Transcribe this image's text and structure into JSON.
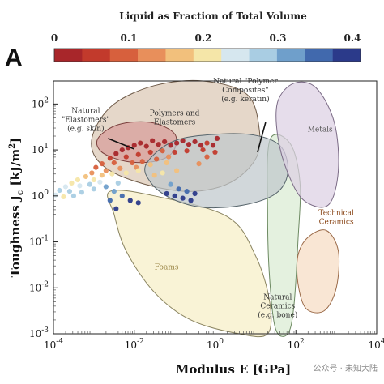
{
  "panel_label": "A",
  "colorbar": {
    "title": "Liquid as Fraction of Total Volume",
    "ticks": [
      "0",
      "0.1",
      "0.2",
      "0.3",
      "0.4"
    ],
    "colors": [
      "#a8262a",
      "#c23a2c",
      "#d7603d",
      "#e88f5b",
      "#f2c07c",
      "#f5e6a8",
      "#d6e7ef",
      "#a9cde3",
      "#6f9fcb",
      "#4169ad",
      "#2b3a8a"
    ]
  },
  "watermark": "公众号 · 未知大陆",
  "chart_data": {
    "type": "scatter",
    "title": "",
    "xlabel": "Modulus E [GPa]",
    "ylabel": "Toughness J",
    "ylabel_sub": "c",
    "ylabel_unit": " [kJ/m",
    "ylabel_sup": "2",
    "ylabel_end": "]",
    "xscale": "log",
    "yscale": "log",
    "xlim_exp": [
      -4,
      4
    ],
    "ylim_exp": [
      -3,
      2.5
    ],
    "xticks": [
      {
        "base": "10",
        "exp": "-4",
        "v": -4
      },
      {
        "base": "10",
        "exp": "-2",
        "v": -2
      },
      {
        "base": "10",
        "exp": "0",
        "v": 0
      },
      {
        "base": "10",
        "exp": "2",
        "v": 2
      },
      {
        "base": "10",
        "exp": "4",
        "v": 4
      }
    ],
    "yticks": [
      {
        "base": "10",
        "exp": "2",
        "v": 2
      },
      {
        "base": "10",
        "exp": "1",
        "v": 1
      },
      {
        "base": "10",
        "exp": "0",
        "v": 0
      },
      {
        "base": "10",
        "exp": "-1",
        "v": -1
      },
      {
        "base": "10",
        "exp": "-2",
        "v": -2
      },
      {
        "base": "10",
        "exp": "-3",
        "v": -3
      }
    ],
    "regions": [
      {
        "name": "foams",
        "label": [
          "Foams"
        ],
        "fill": "#f6efc6",
        "stroke": "#8a8460",
        "label_color": "#9a8546",
        "label_at": [
          -1.2,
          -1.6
        ],
        "poly": [
          [
            -2.6,
            0.1
          ],
          [
            -1.5,
            0.0
          ],
          [
            0.3,
            -0.45
          ],
          [
            1.0,
            -1.3
          ],
          [
            1.35,
            -2.3
          ],
          [
            1.3,
            -3.0
          ],
          [
            0.6,
            -3.0
          ],
          [
            -0.6,
            -2.7
          ],
          [
            -1.5,
            -2.1
          ],
          [
            -2.2,
            -1.2
          ],
          [
            -2.5,
            -0.4
          ]
        ]
      },
      {
        "name": "natural-ceramics",
        "label": [
          "Natural",
          "Ceramics",
          "(e.g. bone)"
        ],
        "fill": "#d9ecd3",
        "stroke": "#6d8a62",
        "label_color": "#333",
        "label_at": [
          1.55,
          -2.25
        ],
        "poly": [
          [
            1.35,
            1.2
          ],
          [
            1.85,
            1.15
          ],
          [
            2.1,
            0.3
          ],
          [
            2.05,
            -1.0
          ],
          [
            1.95,
            -2.4
          ],
          [
            1.8,
            -3.0
          ],
          [
            1.5,
            -2.9
          ],
          [
            1.35,
            -1.8
          ],
          [
            1.3,
            -0.4
          ]
        ]
      },
      {
        "name": "polymers-elastomers",
        "label": [
          "Polymers and",
          "Elastomers"
        ],
        "fill": "#dbc7b4",
        "stroke": "#6e5a48",
        "label_color": "#333",
        "label_at": [
          -1.0,
          1.75
        ],
        "poly": [
          [
            -3.0,
            1.4
          ],
          [
            -2.5,
            2.0
          ],
          [
            -1.5,
            2.4
          ],
          [
            -0.3,
            2.5
          ],
          [
            0.8,
            2.2
          ],
          [
            1.1,
            1.4
          ],
          [
            1.0,
            0.8
          ],
          [
            0.4,
            0.3
          ],
          [
            -0.5,
            0.1
          ],
          [
            -1.5,
            0.2
          ],
          [
            -2.5,
            0.5
          ],
          [
            -3.0,
            0.9
          ]
        ]
      },
      {
        "name": "natural-elastomers",
        "label": [
          "Natural",
          "\"Elastomers\"",
          "(e.g. skin)"
        ],
        "fill": "#d79d9a",
        "stroke": "#7a3f3c",
        "label_color": "#333",
        "label_at": [
          -3.2,
          1.8
        ],
        "poly": [
          [
            -2.9,
            1.25
          ],
          [
            -2.4,
            1.55
          ],
          [
            -1.6,
            1.6
          ],
          [
            -1.0,
            1.35
          ],
          [
            -1.05,
            0.95
          ],
          [
            -1.5,
            0.75
          ],
          [
            -2.2,
            0.75
          ],
          [
            -2.8,
            0.95
          ]
        ]
      },
      {
        "name": "natural-polymer-composites",
        "label": [
          "Natural \"Polymer",
          "Composites\"",
          "(e.g. keratin)"
        ],
        "fill": "#bfc8cc",
        "stroke": "#55636a",
        "label_color": "#333",
        "label_at": [
          0.75,
          2.45
        ],
        "poly": [
          [
            -1.7,
            0.7
          ],
          [
            -1.0,
            1.2
          ],
          [
            0.2,
            1.35
          ],
          [
            1.1,
            1.3
          ],
          [
            1.65,
            1.05
          ],
          [
            1.8,
            0.5
          ],
          [
            1.5,
            0.05
          ],
          [
            0.7,
            -0.2
          ],
          [
            -0.3,
            -0.25
          ],
          [
            -1.1,
            -0.05
          ],
          [
            -1.6,
            0.3
          ]
        ]
      },
      {
        "name": "metals",
        "label": [
          "Metals"
        ],
        "fill": "#ddd0e3",
        "stroke": "#7a6a85",
        "label_color": "#555",
        "label_at": [
          2.6,
          1.4
        ],
        "poly": [
          [
            1.55,
            2.05
          ],
          [
            1.95,
            2.45
          ],
          [
            2.5,
            2.35
          ],
          [
            2.95,
            1.6
          ],
          [
            3.05,
            0.55
          ],
          [
            2.8,
            -0.2
          ],
          [
            2.2,
            -0.1
          ],
          [
            1.8,
            0.5
          ],
          [
            1.55,
            1.3
          ]
        ]
      },
      {
        "name": "technical-ceramics",
        "label": [
          "Technical",
          "Ceramics"
        ],
        "fill": "#f7dcc4",
        "stroke": "#9a6a48",
        "label_color": "#8c4a1c",
        "label_at": [
          3.0,
          -0.42
        ],
        "poly": [
          [
            2.05,
            -1.3
          ],
          [
            2.3,
            -0.9
          ],
          [
            2.75,
            -0.75
          ],
          [
            3.05,
            -1.2
          ],
          [
            3.0,
            -2.0
          ],
          [
            2.7,
            -2.5
          ],
          [
            2.25,
            -2.45
          ],
          [
            2.05,
            -1.9
          ]
        ]
      }
    ],
    "leaders": [
      {
        "name": "elastomers-leader",
        "from": [
          -2.65,
          1.25
        ],
        "to": [
          -2.0,
          1.02
        ]
      },
      {
        "name": "keratin-leader",
        "from": [
          1.25,
          1.6
        ],
        "to": [
          1.05,
          0.95
        ]
      }
    ],
    "points": [
      {
        "x": -3.55,
        "y": 0.28,
        "f": 0.22
      },
      {
        "x": -3.4,
        "y": 0.35,
        "f": 0.18
      },
      {
        "x": -3.2,
        "y": 0.42,
        "f": 0.15
      },
      {
        "x": -3.05,
        "y": 0.5,
        "f": 0.12
      },
      {
        "x": -2.95,
        "y": 0.62,
        "f": 0.09
      },
      {
        "x": -2.8,
        "y": 0.7,
        "f": 0.06
      },
      {
        "x": -2.6,
        "y": 0.82,
        "f": 0.03
      },
      {
        "x": -2.45,
        "y": 0.92,
        "f": 0.02
      },
      {
        "x": -2.3,
        "y": 1.0,
        "f": 0.01
      },
      {
        "x": -2.15,
        "y": 1.05,
        "f": 0.0
      },
      {
        "x": -2.0,
        "y": 1.1,
        "f": 0.01
      },
      {
        "x": -1.85,
        "y": 1.15,
        "f": 0.0
      },
      {
        "x": -1.7,
        "y": 1.08,
        "f": 0.02
      },
      {
        "x": -1.55,
        "y": 1.2,
        "f": 0.0
      },
      {
        "x": -1.4,
        "y": 1.12,
        "f": 0.01
      },
      {
        "x": -1.25,
        "y": 1.18,
        "f": 0.0
      },
      {
        "x": -1.1,
        "y": 1.1,
        "f": 0.02
      },
      {
        "x": -0.95,
        "y": 1.15,
        "f": 0.01
      },
      {
        "x": -0.8,
        "y": 1.2,
        "f": 0.0
      },
      {
        "x": -0.65,
        "y": 1.12,
        "f": 0.02
      },
      {
        "x": -0.5,
        "y": 1.18,
        "f": 0.01
      },
      {
        "x": -0.35,
        "y": 1.1,
        "f": 0.0
      },
      {
        "x": -0.2,
        "y": 1.15,
        "f": 0.03
      },
      {
        "x": -0.05,
        "y": 1.1,
        "f": 0.02
      },
      {
        "x": -2.2,
        "y": 0.85,
        "f": 0.05
      },
      {
        "x": -1.9,
        "y": 0.9,
        "f": 0.04
      },
      {
        "x": -1.6,
        "y": 0.95,
        "f": 0.05
      },
      {
        "x": -1.3,
        "y": 0.98,
        "f": 0.06
      },
      {
        "x": -1.0,
        "y": 0.95,
        "f": 0.05
      },
      {
        "x": -0.7,
        "y": 0.98,
        "f": 0.04
      },
      {
        "x": -2.5,
        "y": 0.72,
        "f": 0.08
      },
      {
        "x": -2.05,
        "y": 0.72,
        "f": 0.07
      },
      {
        "x": -1.8,
        "y": 0.75,
        "f": 0.08
      },
      {
        "x": -1.45,
        "y": 0.8,
        "f": 0.09
      },
      {
        "x": -1.15,
        "y": 0.85,
        "f": 0.1
      },
      {
        "x": -2.7,
        "y": 0.55,
        "f": 0.12
      },
      {
        "x": -2.35,
        "y": 0.6,
        "f": 0.13
      },
      {
        "x": -1.95,
        "y": 0.62,
        "f": 0.12
      },
      {
        "x": -1.6,
        "y": 0.68,
        "f": 0.14
      },
      {
        "x": -1.2,
        "y": 0.72,
        "f": 0.15
      },
      {
        "x": -3.0,
        "y": 0.35,
        "f": 0.2
      },
      {
        "x": -2.8,
        "y": 0.45,
        "f": 0.17
      },
      {
        "x": -2.55,
        "y": 0.48,
        "f": 0.19
      },
      {
        "x": -2.2,
        "y": 0.5,
        "f": 0.21
      },
      {
        "x": -1.9,
        "y": 0.55,
        "f": 0.18
      },
      {
        "x": -3.7,
        "y": 0.2,
        "f": 0.25
      },
      {
        "x": -3.35,
        "y": 0.22,
        "f": 0.24
      },
      {
        "x": -3.1,
        "y": 0.25,
        "f": 0.26
      },
      {
        "x": -2.85,
        "y": 0.3,
        "f": 0.23
      },
      {
        "x": -3.85,
        "y": 0.12,
        "f": 0.28
      },
      {
        "x": -3.6,
        "y": 0.1,
        "f": 0.3
      },
      {
        "x": -3.3,
        "y": 0.08,
        "f": 0.27
      },
      {
        "x": -3.0,
        "y": 0.15,
        "f": 0.29
      },
      {
        "x": -2.7,
        "y": 0.2,
        "f": 0.31
      },
      {
        "x": -2.4,
        "y": 0.28,
        "f": 0.3
      },
      {
        "x": -3.95,
        "y": 0.02,
        "f": 0.24
      },
      {
        "x": -3.75,
        "y": -0.02,
        "f": 0.22
      },
      {
        "x": -3.5,
        "y": 0.0,
        "f": 0.26
      },
      {
        "x": -2.5,
        "y": 0.1,
        "f": 0.33
      },
      {
        "x": -2.3,
        "y": 0.0,
        "f": 0.36
      },
      {
        "x": -2.1,
        "y": -0.1,
        "f": 0.38
      },
      {
        "x": -1.9,
        "y": -0.15,
        "f": 0.4
      },
      {
        "x": -2.6,
        "y": -0.1,
        "f": 0.37
      },
      {
        "x": -2.45,
        "y": -0.28,
        "f": 0.41
      },
      {
        "x": -1.2,
        "y": 0.05,
        "f": 0.38
      },
      {
        "x": -1.0,
        "y": 0.0,
        "f": 0.4
      },
      {
        "x": -0.8,
        "y": -0.05,
        "f": 0.41
      },
      {
        "x": -0.6,
        "y": -0.1,
        "f": 0.39
      },
      {
        "x": -0.9,
        "y": 0.15,
        "f": 0.36
      },
      {
        "x": -0.7,
        "y": 0.1,
        "f": 0.37
      },
      {
        "x": -1.1,
        "y": 0.25,
        "f": 0.33
      },
      {
        "x": -0.5,
        "y": 0.05,
        "f": 0.38
      },
      {
        "x": -1.5,
        "y": 0.45,
        "f": 0.16
      },
      {
        "x": -1.3,
        "y": 0.5,
        "f": 0.18
      },
      {
        "x": -0.95,
        "y": 0.55,
        "f": 0.14
      },
      {
        "x": -0.4,
        "y": 0.7,
        "f": 0.1
      },
      {
        "x": -0.2,
        "y": 0.85,
        "f": 0.06
      },
      {
        "x": 0.0,
        "y": 0.95,
        "f": 0.04
      },
      {
        "x": -0.3,
        "y": 1.0,
        "f": 0.05
      },
      {
        "x": 0.05,
        "y": 1.25,
        "f": 0.01
      }
    ]
  }
}
